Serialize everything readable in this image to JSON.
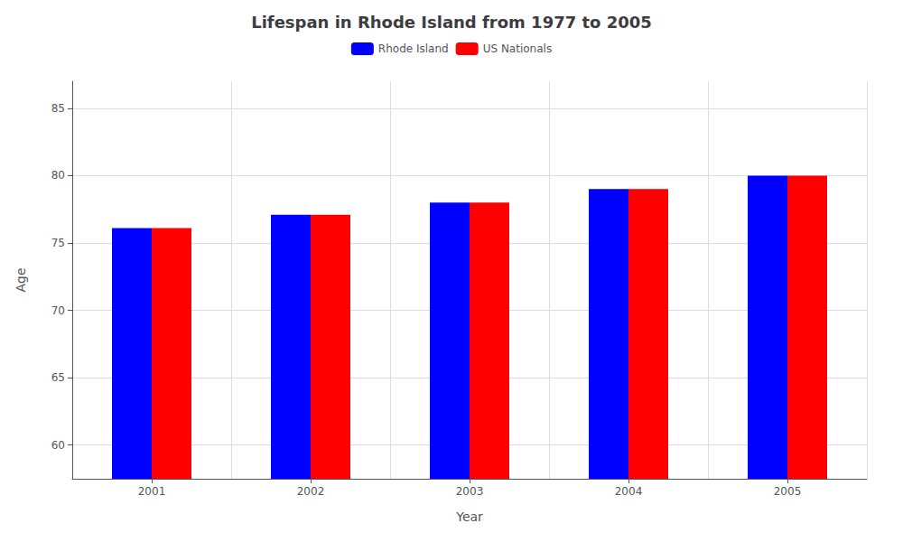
{
  "chart_data": {
    "type": "bar",
    "title": "Lifespan in Rhode Island from 1977 to 2005",
    "xlabel": "Year",
    "ylabel": "Age",
    "categories": [
      "2001",
      "2002",
      "2003",
      "2004",
      "2005"
    ],
    "series": [
      {
        "name": "Rhode Island",
        "color": "#0000ff",
        "values": [
          76.1,
          77.1,
          78.0,
          79.0,
          80.0
        ]
      },
      {
        "name": "US Nationals",
        "color": "#ff0000",
        "values": [
          76.1,
          77.1,
          78.0,
          79.0,
          80.0
        ]
      }
    ],
    "ylim": [
      57.5,
      87
    ],
    "yticks": [
      60,
      65,
      70,
      75,
      80,
      85
    ],
    "grid": true,
    "legend": "top"
  }
}
